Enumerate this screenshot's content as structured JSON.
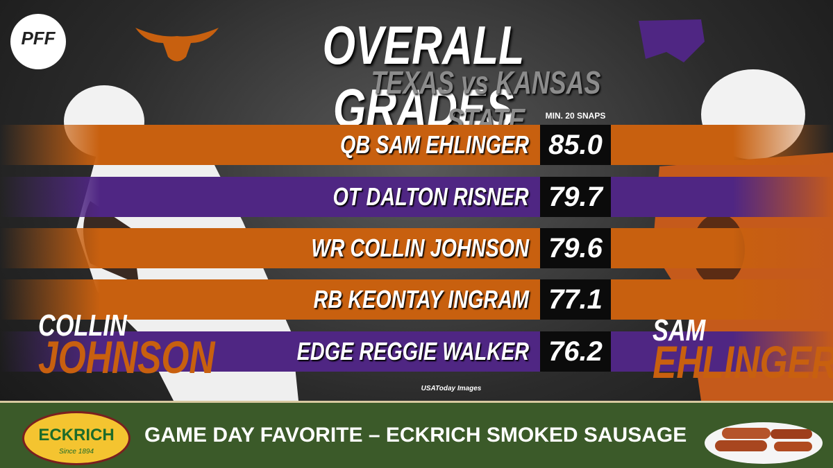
{
  "header": {
    "logo": "PFF",
    "title": "OVERALL GRADES",
    "subtitle": "TEXAS vs KANSAS STATE",
    "note": "MIN. 20 SNAPS"
  },
  "rows": [
    {
      "player": "QB SAM EHLINGER",
      "grade": "85.0",
      "color": "#c8600f"
    },
    {
      "player": "OT DALTON RISNER",
      "grade": "79.7",
      "color": "#4f2683"
    },
    {
      "player": "WR COLLIN JOHNSON",
      "grade": "79.6",
      "color": "#c8600f"
    },
    {
      "player": "RB KEONTAY INGRAM",
      "grade": "77.1",
      "color": "#c8600f"
    },
    {
      "player": "EDGE REGGIE WALKER",
      "grade": "76.2",
      "color": "#4f2683"
    }
  ],
  "credit": "USAToday Images",
  "captions": {
    "left": {
      "first": "COLLIN",
      "last": "JOHNSON"
    },
    "right": {
      "first": "SAM",
      "last": "EHLINGER"
    }
  },
  "footer": {
    "brand": "ECKRICH",
    "since": "Since 1894",
    "slogan": "GAME DAY FAVORITE – ECKRICH SMOKED SAUSAGE"
  }
}
